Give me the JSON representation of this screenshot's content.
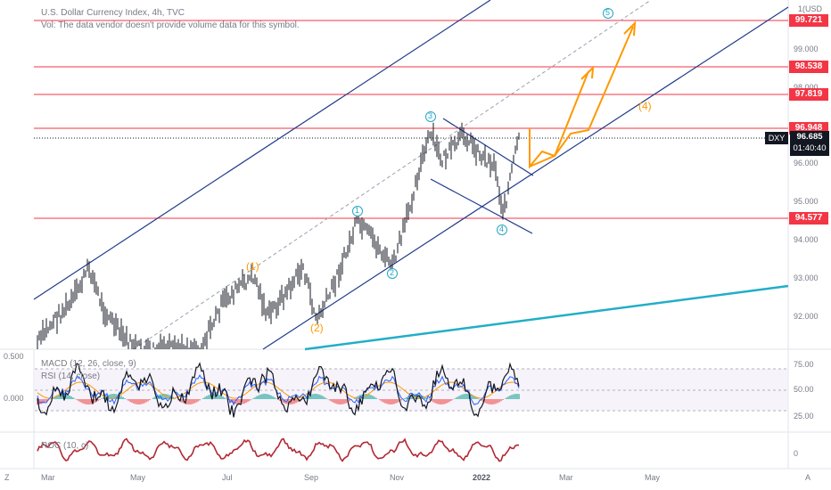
{
  "header": {
    "title": "U.S. Dollar Currency Index, 4h, TVC",
    "vol_note": "Vol: The data vendor doesn't provide volume data for this symbol.",
    "currency": "USD"
  },
  "price_axis": {
    "ticks": [
      "99.000",
      "98.000",
      "96.000",
      "95.000",
      "94.000",
      "93.000",
      "92.000"
    ],
    "levels": [
      "99.721",
      "98.538",
      "97.819",
      "96.948",
      "94.577"
    ],
    "symbol": "DXY",
    "current_price": "96.685",
    "countdown": "01:40:40"
  },
  "time_axis": {
    "labels": [
      "Mar",
      "May",
      "Jul",
      "Sep",
      "Nov",
      "2022",
      "Mar",
      "May"
    ],
    "left_corner": "Z",
    "right_corner": "A"
  },
  "wave_labels": {
    "w1_orange": "(1)",
    "w2_orange": "(2)",
    "w4_orange": "(4)",
    "c1": "1",
    "c2": "2",
    "c3": "3",
    "c4": "4",
    "c5": "5"
  },
  "macd_pane": {
    "title": "MACD (12, 26, close, 9)",
    "rsi_title": "RSI (14, close)",
    "left_ticks": [
      "0.500",
      "0.000"
    ],
    "right_ticks": [
      "75.00",
      "50.00",
      "25.00"
    ]
  },
  "roc_pane": {
    "title": "ROC (10, c)",
    "right_tick": "0"
  },
  "colors": {
    "level_line": "#f23645",
    "channel": "#1e3a8a",
    "projection": "#ff9800",
    "wave_circle": "#26a6c4",
    "trend_cyan": "#22aec7",
    "roc": "#b22833"
  }
}
